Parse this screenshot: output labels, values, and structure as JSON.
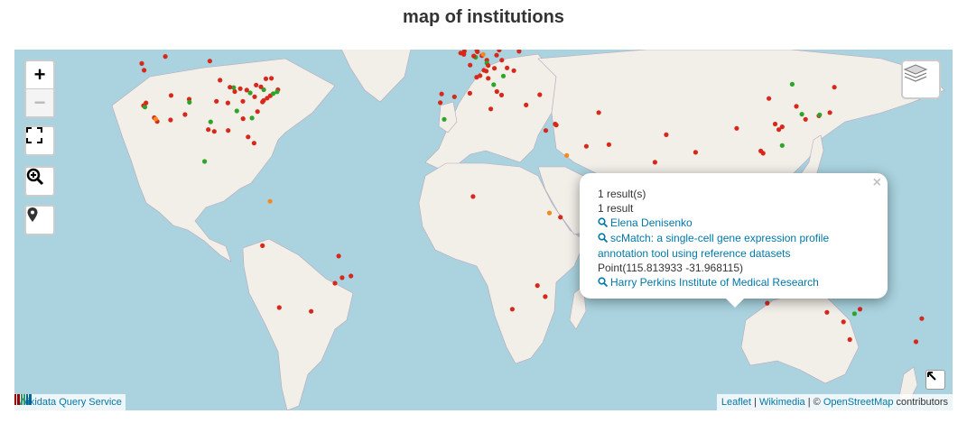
{
  "title": "map of institutions",
  "colors": {
    "water": "#aad3df",
    "land": "#f2efe9",
    "border": "#b9a8b9",
    "marker_red": "#d7281c",
    "marker_green": "#2ea52a",
    "marker_orange": "#f28a1f"
  },
  "controls": {
    "zoom_in_label": "+",
    "zoom_out_label": "−",
    "icons": [
      "fullscreen-icon",
      "zoom-search-icon",
      "map-pin-icon",
      "layers-icon",
      "collapse-arrow-icon"
    ]
  },
  "popup": {
    "close_label": "×",
    "results_count": "1 result(s)",
    "result_label": "1 result",
    "author": "Elena Denisenko",
    "work": "scMatch: a single-cell gene expression profile annotation tool using reference datasets",
    "point": "Point(115.813933 -31.968115)",
    "institution": "Harry Perkins Institute of Medical Research"
  },
  "attribution": {
    "leaflet": "Leaflet",
    "separator1": " | ",
    "wikimedia": "Wikimedia",
    "separator2": " | © ",
    "osm": "OpenStreetMap",
    "suffix": " contributors"
  },
  "source_badge": "Wikidata Query Service",
  "markers": [
    {
      "lon": -122.4,
      "lat": 37.8,
      "c": "r"
    },
    {
      "lon": -122.2,
      "lat": 47.6,
      "c": "r"
    },
    {
      "lon": -118.3,
      "lat": 34.1,
      "c": "r"
    },
    {
      "lon": -117.2,
      "lat": 32.9,
      "c": "r"
    },
    {
      "lon": -121.9,
      "lat": 37.4,
      "c": "g"
    },
    {
      "lon": -111.9,
      "lat": 40.8,
      "c": "r"
    },
    {
      "lon": -105.0,
      "lat": 39.7,
      "c": "r"
    },
    {
      "lon": -97.7,
      "lat": 30.3,
      "c": "r"
    },
    {
      "lon": -95.4,
      "lat": 29.7,
      "c": "r"
    },
    {
      "lon": -93.2,
      "lat": 45.0,
      "c": "r"
    },
    {
      "lon": -90.2,
      "lat": 38.6,
      "c": "r"
    },
    {
      "lon": -87.6,
      "lat": 41.9,
      "c": "r"
    },
    {
      "lon": -86.8,
      "lat": 36.2,
      "c": "g"
    },
    {
      "lon": -84.4,
      "lat": 33.8,
      "c": "r"
    },
    {
      "lon": -83.0,
      "lat": 42.3,
      "c": "r"
    },
    {
      "lon": -81.7,
      "lat": 41.5,
      "c": "g"
    },
    {
      "lon": -80.0,
      "lat": 40.4,
      "c": "r"
    },
    {
      "lon": -80.2,
      "lat": 25.8,
      "c": "r"
    },
    {
      "lon": -79.4,
      "lat": 43.7,
      "c": "r"
    },
    {
      "lon": -78.9,
      "lat": 36.0,
      "c": "r"
    },
    {
      "lon": -77.0,
      "lat": 38.9,
      "c": "r"
    },
    {
      "lon": -76.6,
      "lat": 39.3,
      "c": "r"
    },
    {
      "lon": -75.2,
      "lat": 40.0,
      "c": "r"
    },
    {
      "lon": -74.0,
      "lat": 40.7,
      "c": "r"
    },
    {
      "lon": -73.6,
      "lat": 45.5,
      "c": "r"
    },
    {
      "lon": -72.9,
      "lat": 41.3,
      "c": "g"
    },
    {
      "lon": -71.1,
      "lat": 42.4,
      "c": "r"
    },
    {
      "lon": -71.4,
      "lat": 41.8,
      "c": "g"
    },
    {
      "lon": -75.7,
      "lat": 45.4,
      "c": "r"
    },
    {
      "lon": -82.5,
      "lat": 27.9,
      "c": "r"
    },
    {
      "lon": -90.1,
      "lat": 30.0,
      "c": "r"
    },
    {
      "lon": -96.8,
      "lat": 32.8,
      "c": "g"
    },
    {
      "lon": -104.9,
      "lat": 38.8,
      "c": "g"
    },
    {
      "lon": -106.6,
      "lat": 35.1,
      "c": "r"
    },
    {
      "lon": -112.1,
      "lat": 33.4,
      "c": "r"
    },
    {
      "lon": -123.1,
      "lat": 49.3,
      "c": "r"
    },
    {
      "lon": -114.1,
      "lat": 51.0,
      "c": "r"
    },
    {
      "lon": -113.5,
      "lat": 53.5,
      "c": "g"
    },
    {
      "lon": -97.1,
      "lat": 49.9,
      "c": "r"
    },
    {
      "lon": -99.1,
      "lat": 19.4,
      "c": "g"
    },
    {
      "lon": -85.5,
      "lat": 42.7,
      "c": "r"
    },
    {
      "lon": -88.0,
      "lat": 43.0,
      "c": "g"
    },
    {
      "lon": -84.5,
      "lat": 39.1,
      "c": "r"
    },
    {
      "lon": -89.4,
      "lat": 43.1,
      "c": "r"
    },
    {
      "lon": -94.6,
      "lat": 39.1,
      "c": "r"
    },
    {
      "lon": -81.0,
      "lat": 34.0,
      "c": "g"
    },
    {
      "lon": -76.5,
      "lat": 42.4,
      "c": "g"
    },
    {
      "lon": -77.6,
      "lat": 43.2,
      "c": "r"
    },
    {
      "lon": -117.8,
      "lat": 33.7,
      "c": "o"
    },
    {
      "lon": -121.5,
      "lat": 38.6,
      "c": "r"
    },
    {
      "lon": -43.2,
      "lat": -22.9,
      "c": "r"
    },
    {
      "lon": -46.6,
      "lat": -23.5,
      "c": "r"
    },
    {
      "lon": -47.9,
      "lat": -15.8,
      "c": "r"
    },
    {
      "lon": -58.4,
      "lat": -34.6,
      "c": "r"
    },
    {
      "lon": -70.6,
      "lat": -33.4,
      "c": "r"
    },
    {
      "lon": -74.1,
      "lat": 4.7,
      "c": "o"
    },
    {
      "lon": -77.0,
      "lat": -12.0,
      "c": "r"
    },
    {
      "lon": -49.3,
      "lat": -25.4,
      "c": "r"
    },
    {
      "lon": -0.1,
      "lat": 51.5,
      "c": "r"
    },
    {
      "lon": -1.3,
      "lat": 51.8,
      "c": "r"
    },
    {
      "lon": 0.1,
      "lat": 52.2,
      "c": "r"
    },
    {
      "lon": -3.2,
      "lat": 55.9,
      "c": "r"
    },
    {
      "lon": -2.2,
      "lat": 53.5,
      "c": "g"
    },
    {
      "lon": -6.3,
      "lat": 53.3,
      "c": "r"
    },
    {
      "lon": -8.6,
      "lat": 41.2,
      "c": "r"
    },
    {
      "lon": -9.1,
      "lat": 38.7,
      "c": "r"
    },
    {
      "lon": -3.7,
      "lat": 40.4,
      "c": "r"
    },
    {
      "lon": 2.2,
      "lat": 41.4,
      "c": "r"
    },
    {
      "lon": 2.3,
      "lat": 48.9,
      "c": "r"
    },
    {
      "lon": 4.8,
      "lat": 45.8,
      "c": "r"
    },
    {
      "lon": 4.9,
      "lat": 52.4,
      "c": "r"
    },
    {
      "lon": 4.4,
      "lat": 50.8,
      "c": "g"
    },
    {
      "lon": 5.1,
      "lat": 52.1,
      "c": "r"
    },
    {
      "lon": 6.1,
      "lat": 46.2,
      "c": "r"
    },
    {
      "lon": 8.5,
      "lat": 47.4,
      "c": "r"
    },
    {
      "lon": 7.6,
      "lat": 47.6,
      "c": "r"
    },
    {
      "lon": 8.7,
      "lat": 50.1,
      "c": "r"
    },
    {
      "lon": 8.7,
      "lat": 49.4,
      "c": "g"
    },
    {
      "lon": 11.6,
      "lat": 48.1,
      "c": "r"
    },
    {
      "lon": 13.4,
      "lat": 52.5,
      "c": "r"
    },
    {
      "lon": 10.0,
      "lat": 53.6,
      "c": "r"
    },
    {
      "lon": 12.4,
      "lat": 51.3,
      "c": "r"
    },
    {
      "lon": 6.8,
      "lat": 51.2,
      "c": "r"
    },
    {
      "lon": 9.2,
      "lat": 48.8,
      "c": "r"
    },
    {
      "lon": 16.4,
      "lat": 48.2,
      "c": "r"
    },
    {
      "lon": 14.4,
      "lat": 50.1,
      "c": "r"
    },
    {
      "lon": 19.0,
      "lat": 47.5,
      "c": "r"
    },
    {
      "lon": 21.0,
      "lat": 52.2,
      "c": "r"
    },
    {
      "lon": 12.6,
      "lat": 55.7,
      "c": "r"
    },
    {
      "lon": 18.1,
      "lat": 59.3,
      "c": "r"
    },
    {
      "lon": 10.7,
      "lat": 59.9,
      "c": "r"
    },
    {
      "lon": 24.9,
      "lat": 60.2,
      "c": "r"
    },
    {
      "lon": 12.5,
      "lat": 41.9,
      "c": "r"
    },
    {
      "lon": 9.2,
      "lat": 45.5,
      "c": "r"
    },
    {
      "lon": 11.3,
      "lat": 43.8,
      "c": "g"
    },
    {
      "lon": 14.3,
      "lat": 40.9,
      "c": "r"
    },
    {
      "lon": 23.7,
      "lat": 38.0,
      "c": "r"
    },
    {
      "lon": 28.9,
      "lat": 41.0,
      "c": "r"
    },
    {
      "lon": 30.3,
      "lat": 59.9,
      "c": "r"
    },
    {
      "lon": 37.6,
      "lat": 55.8,
      "c": "r"
    },
    {
      "lon": 13.0,
      "lat": 55.6,
      "c": "g"
    },
    {
      "lon": 15.0,
      "lat": 46.1,
      "c": "g"
    },
    {
      "lon": 7.3,
      "lat": 51.5,
      "c": "o"
    },
    {
      "lon": 3.7,
      "lat": 51.1,
      "c": "r"
    },
    {
      "lon": 34.8,
      "lat": 32.1,
      "c": "r"
    },
    {
      "lon": 35.2,
      "lat": 31.8,
      "c": "r"
    },
    {
      "lon": 39.2,
      "lat": 21.5,
      "c": "o"
    },
    {
      "lon": 51.4,
      "lat": 35.7,
      "c": "r"
    },
    {
      "lon": 46.7,
      "lat": 24.7,
      "c": "r"
    },
    {
      "lon": 55.3,
      "lat": 25.3,
      "c": "r"
    },
    {
      "lon": 72.9,
      "lat": 19.1,
      "c": "r"
    },
    {
      "lon": 77.2,
      "lat": 28.6,
      "c": "r"
    },
    {
      "lon": 77.6,
      "lat": 13.0,
      "c": "r"
    },
    {
      "lon": 80.3,
      "lat": 13.1,
      "c": "g"
    },
    {
      "lon": 88.4,
      "lat": 22.6,
      "c": "r"
    },
    {
      "lon": 103.8,
      "lat": 1.3,
      "c": "r"
    },
    {
      "lon": 100.5,
      "lat": 13.8,
      "c": "g"
    },
    {
      "lon": 101.7,
      "lat": 3.1,
      "c": "r"
    },
    {
      "lon": 116.4,
      "lat": 39.9,
      "c": "r"
    },
    {
      "lon": 121.5,
      "lat": 31.2,
      "c": "r"
    },
    {
      "lon": 114.2,
      "lat": 22.3,
      "c": "r"
    },
    {
      "lon": 113.3,
      "lat": 23.1,
      "c": "r"
    },
    {
      "lon": 120.2,
      "lat": 30.3,
      "c": "r"
    },
    {
      "lon": 118.8,
      "lat": 32.1,
      "c": "r"
    },
    {
      "lon": 121.5,
      "lat": 25.0,
      "c": "g"
    },
    {
      "lon": 126.9,
      "lat": 37.6,
      "c": "r"
    },
    {
      "lon": 129.0,
      "lat": 35.2,
      "c": "g"
    },
    {
      "lon": 139.7,
      "lat": 35.7,
      "c": "r"
    },
    {
      "lon": 135.5,
      "lat": 34.7,
      "c": "r"
    },
    {
      "lon": 135.8,
      "lat": 35.0,
      "c": "g"
    },
    {
      "lon": 141.4,
      "lat": 43.1,
      "c": "r"
    },
    {
      "lon": 130.4,
      "lat": 33.6,
      "c": "r"
    },
    {
      "lon": 104.1,
      "lat": 30.7,
      "c": "r"
    },
    {
      "lon": 125.3,
      "lat": 43.9,
      "c": "g"
    },
    {
      "lon": 151.2,
      "lat": -33.9,
      "c": "r"
    },
    {
      "lon": 144.9,
      "lat": -37.8,
      "c": "r"
    },
    {
      "lon": 153.0,
      "lat": -27.5,
      "c": "r"
    },
    {
      "lon": 138.6,
      "lat": -34.9,
      "c": "r"
    },
    {
      "lon": 115.8,
      "lat": -32.0,
      "c": "r"
    },
    {
      "lon": 149.1,
      "lat": -35.3,
      "c": "g"
    },
    {
      "lon": 147.3,
      "lat": -42.9,
      "c": "r"
    },
    {
      "lon": 174.8,
      "lat": -36.8,
      "c": "r"
    },
    {
      "lon": 172.6,
      "lat": -43.5,
      "c": "r"
    },
    {
      "lon": 18.4,
      "lat": -33.9,
      "c": "r"
    },
    {
      "lon": 28.0,
      "lat": -26.2,
      "c": "r"
    },
    {
      "lon": 31.0,
      "lat": -29.9,
      "c": "r"
    },
    {
      "lon": 36.8,
      "lat": -1.3,
      "c": "r"
    },
    {
      "lon": 32.6,
      "lat": 0.3,
      "c": "o"
    },
    {
      "lon": 3.4,
      "lat": 6.5,
      "c": "r"
    },
    {
      "lon": 31.2,
      "lat": 30.0,
      "c": "r"
    },
    {
      "lon": 10.2,
      "lat": 36.8,
      "c": "r"
    },
    {
      "lon": -7.6,
      "lat": 33.6,
      "c": "g"
    }
  ]
}
